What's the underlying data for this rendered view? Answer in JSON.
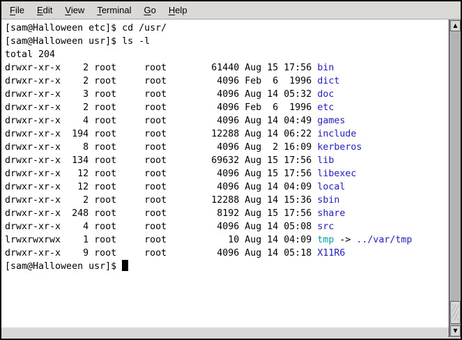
{
  "menu_bar": {
    "items": [
      {
        "label": "File"
      },
      {
        "label": "Edit"
      },
      {
        "label": "View"
      },
      {
        "label": "Terminal"
      },
      {
        "label": "Go"
      },
      {
        "label": "Help"
      }
    ]
  },
  "icons": {
    "scroll_up_arrow": "▲",
    "scroll_down_arrow": "▼"
  },
  "colors": {
    "terminal_background": "#ffffff",
    "text": "#000000",
    "directory": "#1f1fbf",
    "symlink": "#00a3a3",
    "chrome": "#d8d8d8"
  },
  "terminal": {
    "prompt_host": "Halloween",
    "prompt_user": "sam",
    "lines": [
      {
        "segments": [
          {
            "text": "[sam@Halloween etc]$ cd /usr/",
            "color": "fg"
          }
        ]
      },
      {
        "segments": [
          {
            "text": "[sam@Halloween usr]$ ls -l",
            "color": "fg"
          }
        ]
      },
      {
        "segments": [
          {
            "text": "total 204",
            "color": "fg"
          }
        ]
      },
      {
        "segments": [
          {
            "text": "drwxr-xr-x    2 root     root        61440 Aug 15 17:56 ",
            "color": "fg"
          },
          {
            "text": "bin",
            "color": "dir"
          }
        ]
      },
      {
        "segments": [
          {
            "text": "drwxr-xr-x    2 root     root         4096 Feb  6  1996 ",
            "color": "fg"
          },
          {
            "text": "dict",
            "color": "dir"
          }
        ]
      },
      {
        "segments": [
          {
            "text": "drwxr-xr-x    3 root     root         4096 Aug 14 05:32 ",
            "color": "fg"
          },
          {
            "text": "doc",
            "color": "dir"
          }
        ]
      },
      {
        "segments": [
          {
            "text": "drwxr-xr-x    2 root     root         4096 Feb  6  1996 ",
            "color": "fg"
          },
          {
            "text": "etc",
            "color": "dir"
          }
        ]
      },
      {
        "segments": [
          {
            "text": "drwxr-xr-x    4 root     root         4096 Aug 14 04:49 ",
            "color": "fg"
          },
          {
            "text": "games",
            "color": "dir"
          }
        ]
      },
      {
        "segments": [
          {
            "text": "drwxr-xr-x  194 root     root        12288 Aug 14 06:22 ",
            "color": "fg"
          },
          {
            "text": "include",
            "color": "dir"
          }
        ]
      },
      {
        "segments": [
          {
            "text": "drwxr-xr-x    8 root     root         4096 Aug  2 16:09 ",
            "color": "fg"
          },
          {
            "text": "kerberos",
            "color": "dir"
          }
        ]
      },
      {
        "segments": [
          {
            "text": "drwxr-xr-x  134 root     root        69632 Aug 15 17:56 ",
            "color": "fg"
          },
          {
            "text": "lib",
            "color": "dir"
          }
        ]
      },
      {
        "segments": [
          {
            "text": "drwxr-xr-x   12 root     root         4096 Aug 15 17:56 ",
            "color": "fg"
          },
          {
            "text": "libexec",
            "color": "dir"
          }
        ]
      },
      {
        "segments": [
          {
            "text": "drwxr-xr-x   12 root     root         4096 Aug 14 04:09 ",
            "color": "fg"
          },
          {
            "text": "local",
            "color": "dir"
          }
        ]
      },
      {
        "segments": [
          {
            "text": "drwxr-xr-x    2 root     root        12288 Aug 14 15:36 ",
            "color": "fg"
          },
          {
            "text": "sbin",
            "color": "dir"
          }
        ]
      },
      {
        "segments": [
          {
            "text": "drwxr-xr-x  248 root     root         8192 Aug 15 17:56 ",
            "color": "fg"
          },
          {
            "text": "share",
            "color": "dir"
          }
        ]
      },
      {
        "segments": [
          {
            "text": "drwxr-xr-x    4 root     root         4096 Aug 14 05:08 ",
            "color": "fg"
          },
          {
            "text": "src",
            "color": "dir"
          }
        ]
      },
      {
        "segments": [
          {
            "text": "lrwxrwxrwx    1 root     root           10 Aug 14 04:09 ",
            "color": "fg"
          },
          {
            "text": "tmp",
            "color": "link"
          },
          {
            "text": " -> ",
            "color": "fg"
          },
          {
            "text": "../var/tmp",
            "color": "dir"
          }
        ]
      },
      {
        "segments": [
          {
            "text": "drwxr-xr-x    9 root     root         4096 Aug 14 05:18 ",
            "color": "fg"
          },
          {
            "text": "X11R6",
            "color": "dir"
          }
        ]
      },
      {
        "segments": [
          {
            "text": "[sam@Halloween usr]$ ",
            "color": "fg"
          }
        ],
        "cursor": true
      }
    ]
  }
}
